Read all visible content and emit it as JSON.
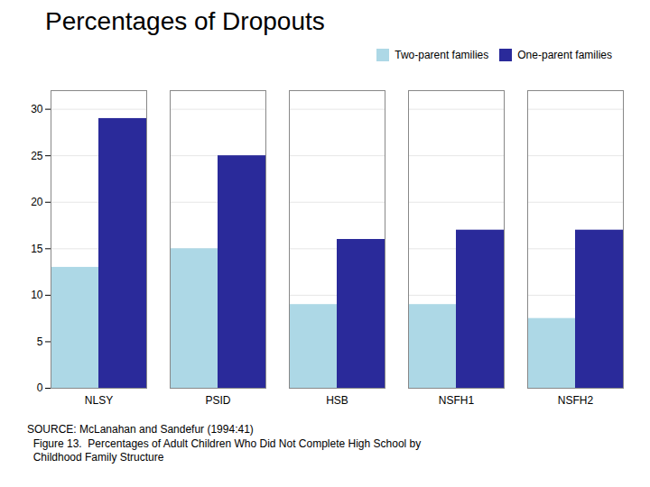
{
  "chart_data": {
    "type": "bar",
    "title": "Percentages of Dropouts",
    "categories": [
      "NLSY",
      "PSID",
      "HSB",
      "NSFH1",
      "NSFH2"
    ],
    "series": [
      {
        "name": "Two-parent families",
        "color": "#add8e6",
        "values": [
          13,
          15,
          9,
          9,
          7.5
        ]
      },
      {
        "name": "One-parent families",
        "color": "#2a2a9a",
        "values": [
          29,
          25,
          16,
          17,
          17
        ]
      }
    ],
    "ylim": [
      0,
      32
    ],
    "yticks": [
      0,
      5,
      10,
      15,
      20,
      25,
      30
    ],
    "grid": true,
    "legend": "upper right",
    "caption": [
      "SOURCE: McLanahan and Sandefur (1994:41)",
      "  Figure 13.  Percentages of Adult Children Who Did Not Complete High School by",
      "  Childhood Family Structure"
    ]
  }
}
